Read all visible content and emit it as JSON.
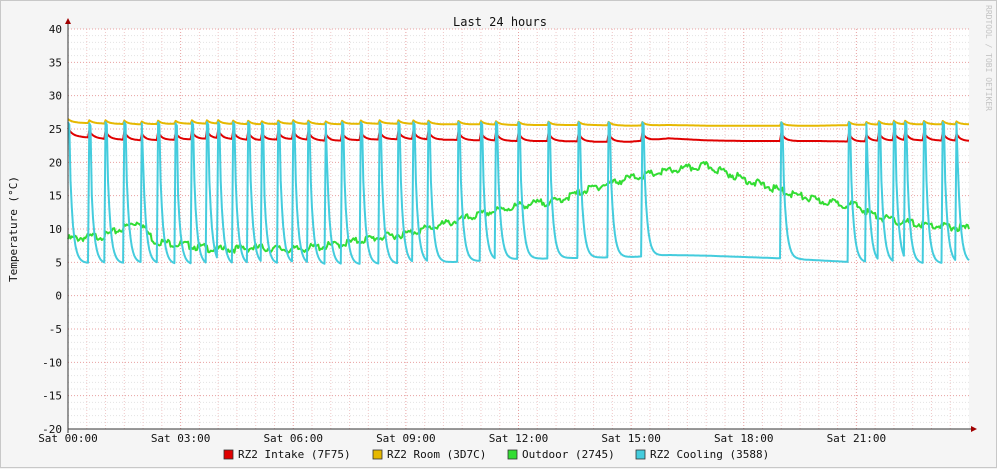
{
  "chart_data": {
    "type": "line",
    "title": "Last 24 hours",
    "ylabel": "Temperature (°C)",
    "watermark": "RRDTOOL / TOBI OETIKER",
    "ylim": [
      -20,
      40
    ],
    "xlim_hours": [
      0,
      24
    ],
    "y_ticks": [
      40,
      35,
      30,
      25,
      20,
      15,
      10,
      5,
      0,
      -5,
      -10,
      -15,
      -20
    ],
    "x_tick_labels": [
      "Sat 00:00",
      "Sat 03:00",
      "Sat 06:00",
      "Sat 09:00",
      "Sat 12:00",
      "Sat 15:00",
      "Sat 18:00",
      "Sat 21:00"
    ],
    "grid": true,
    "legend_position": "bottom",
    "series": [
      {
        "name": "RZ2 Intake (7F75)",
        "color": "#e00000",
        "x": [
          0,
          1,
          2,
          3,
          4,
          5,
          6,
          7,
          8,
          9,
          10,
          11,
          12,
          13,
          14,
          15,
          16,
          17,
          18,
          19,
          20,
          21,
          22,
          23,
          24
        ],
        "y": [
          24.0,
          23.5,
          23.3,
          23.4,
          23.6,
          23.3,
          23.5,
          23.2,
          23.4,
          23.5,
          23.4,
          23.3,
          23.2,
          23.2,
          23.1,
          23.1,
          23.6,
          23.3,
          23.2,
          23.2,
          23.2,
          23.1,
          23.3,
          23.3,
          23.2
        ]
      },
      {
        "name": "RZ2 Room (3D7C)",
        "color": "#e6b800",
        "x": [
          0,
          1,
          2,
          3,
          4,
          5,
          6,
          7,
          8,
          9,
          10,
          11,
          12,
          13,
          14,
          15,
          16,
          17,
          18,
          19,
          20,
          21,
          22,
          23,
          24
        ],
        "y": [
          26.0,
          25.8,
          25.7,
          25.8,
          25.8,
          25.7,
          25.8,
          25.7,
          25.8,
          25.8,
          25.7,
          25.7,
          25.6,
          25.6,
          25.6,
          25.5,
          25.6,
          25.5,
          25.5,
          25.5,
          25.5,
          25.6,
          25.7,
          25.7,
          25.7
        ]
      },
      {
        "name": "Outdoor (2745)",
        "color": "#33dd33",
        "x": [
          0,
          1,
          1.9,
          2.3,
          3,
          4,
          5,
          6,
          7,
          8,
          9,
          10,
          11,
          12,
          13,
          14,
          15,
          16,
          17,
          18,
          19,
          20,
          21,
          21.4,
          22,
          23,
          24
        ],
        "y": [
          8.8,
          9.3,
          11.5,
          8.5,
          8.0,
          7.2,
          7.5,
          7.2,
          7.8,
          8.8,
          9.6,
          11.0,
          12.5,
          13.8,
          14.5,
          16.5,
          18.0,
          19.0,
          19.8,
          17.8,
          16.0,
          14.5,
          13.8,
          12.5,
          11.5,
          10.8,
          10.4
        ]
      },
      {
        "name": "RZ2 Cooling (3588)",
        "color": "#44ccdd",
        "x": [
          0,
          1,
          2,
          3,
          4,
          5,
          6,
          7,
          8,
          9,
          10,
          11,
          12,
          13,
          14,
          15,
          16,
          17,
          18,
          19,
          20,
          21,
          22,
          23,
          24
        ],
        "y": [
          5.0,
          4.8,
          4.9,
          4.7,
          4.6,
          4.7,
          4.8,
          4.6,
          4.7,
          4.8,
          5.0,
          5.2,
          5.5,
          5.6,
          5.7,
          5.8,
          6.1,
          6.0,
          5.8,
          5.6,
          5.3,
          5.0,
          4.9,
          4.8,
          4.9
        ],
        "spike_peak": 26.0,
        "spike_hours": [
          0.0,
          0.55,
          1.0,
          1.5,
          1.95,
          2.4,
          2.85,
          3.3,
          3.7,
          4.0,
          4.4,
          4.8,
          5.15,
          5.6,
          6.0,
          6.4,
          6.85,
          7.3,
          7.8,
          8.3,
          8.8,
          9.2,
          9.6,
          10.4,
          11.0,
          11.4,
          12.0,
          12.8,
          13.6,
          14.4,
          15.3,
          19.0,
          20.8,
          21.25,
          21.6,
          22.0,
          22.3,
          22.8,
          23.3,
          23.65
        ]
      }
    ]
  }
}
